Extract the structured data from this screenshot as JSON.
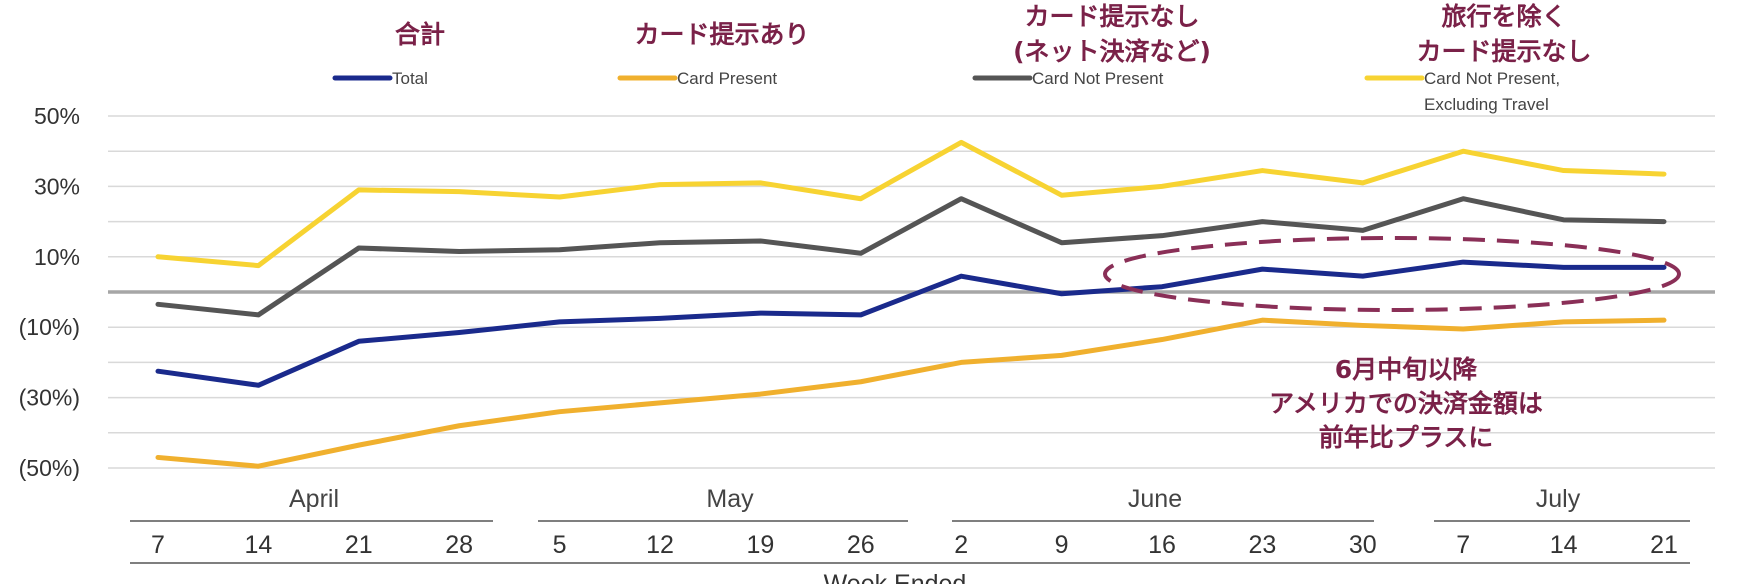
{
  "chart_data": {
    "type": "line",
    "title_annotations_jp": [
      "合計",
      "カード提示あり",
      "カード提示なし",
      "(ネット決済など)",
      "旅行を除く",
      "カード提示なし"
    ],
    "x": [
      "7",
      "14",
      "21",
      "28",
      "5",
      "12",
      "19",
      "26",
      "2",
      "9",
      "16",
      "23",
      "30",
      "7",
      "14",
      "21"
    ],
    "months": [
      "April",
      "May",
      "June",
      "July"
    ],
    "xlabel": "Week Ended",
    "ylabel": "",
    "ylim": [
      -55,
      52
    ],
    "yticks": [
      50,
      30,
      10,
      -10,
      -30,
      -50
    ],
    "ytick_labels": [
      "50%",
      "30%",
      "10%",
      "(10%)",
      "(30%)",
      "(50%)"
    ],
    "grid": true,
    "legend_position": "top",
    "series": [
      {
        "name": "Total",
        "color": "#1a2a8c",
        "values": [
          -22.5,
          -26.5,
          -14,
          -11.5,
          -8.5,
          -7.5,
          -6,
          -6.5,
          4.5,
          -0.5,
          1.5,
          6.5,
          4.5,
          8.5,
          7,
          7
        ]
      },
      {
        "name": "Card Present",
        "color": "#f0b02e",
        "values": [
          -47,
          -49.5,
          -43.5,
          -38,
          -34,
          -31.5,
          -29,
          -25.5,
          -20,
          -18,
          -13.5,
          -8,
          -9.5,
          -10.5,
          -8.5,
          -8
        ]
      },
      {
        "name": "Card Not Present",
        "color": "#555555",
        "values": [
          -3.5,
          -6.5,
          12.5,
          11.5,
          12,
          14,
          14.5,
          11,
          26.5,
          14,
          16,
          20,
          17.5,
          26.5,
          20.5,
          20
        ]
      },
      {
        "name": "Card Not Present, Excluding Travel",
        "color": "#f7d332",
        "values": [
          10,
          7.5,
          29,
          28.5,
          27,
          30.5,
          31,
          26.5,
          42.5,
          27.5,
          30,
          34.5,
          31,
          40,
          34.5,
          33.5
        ]
      }
    ],
    "legend_line2": "Excluding Travel",
    "annotation": [
      "6月中旬以降",
      "アメリカでの決済金額は",
      "前年比プラスに"
    ],
    "annotation_color": "#7a2148"
  }
}
